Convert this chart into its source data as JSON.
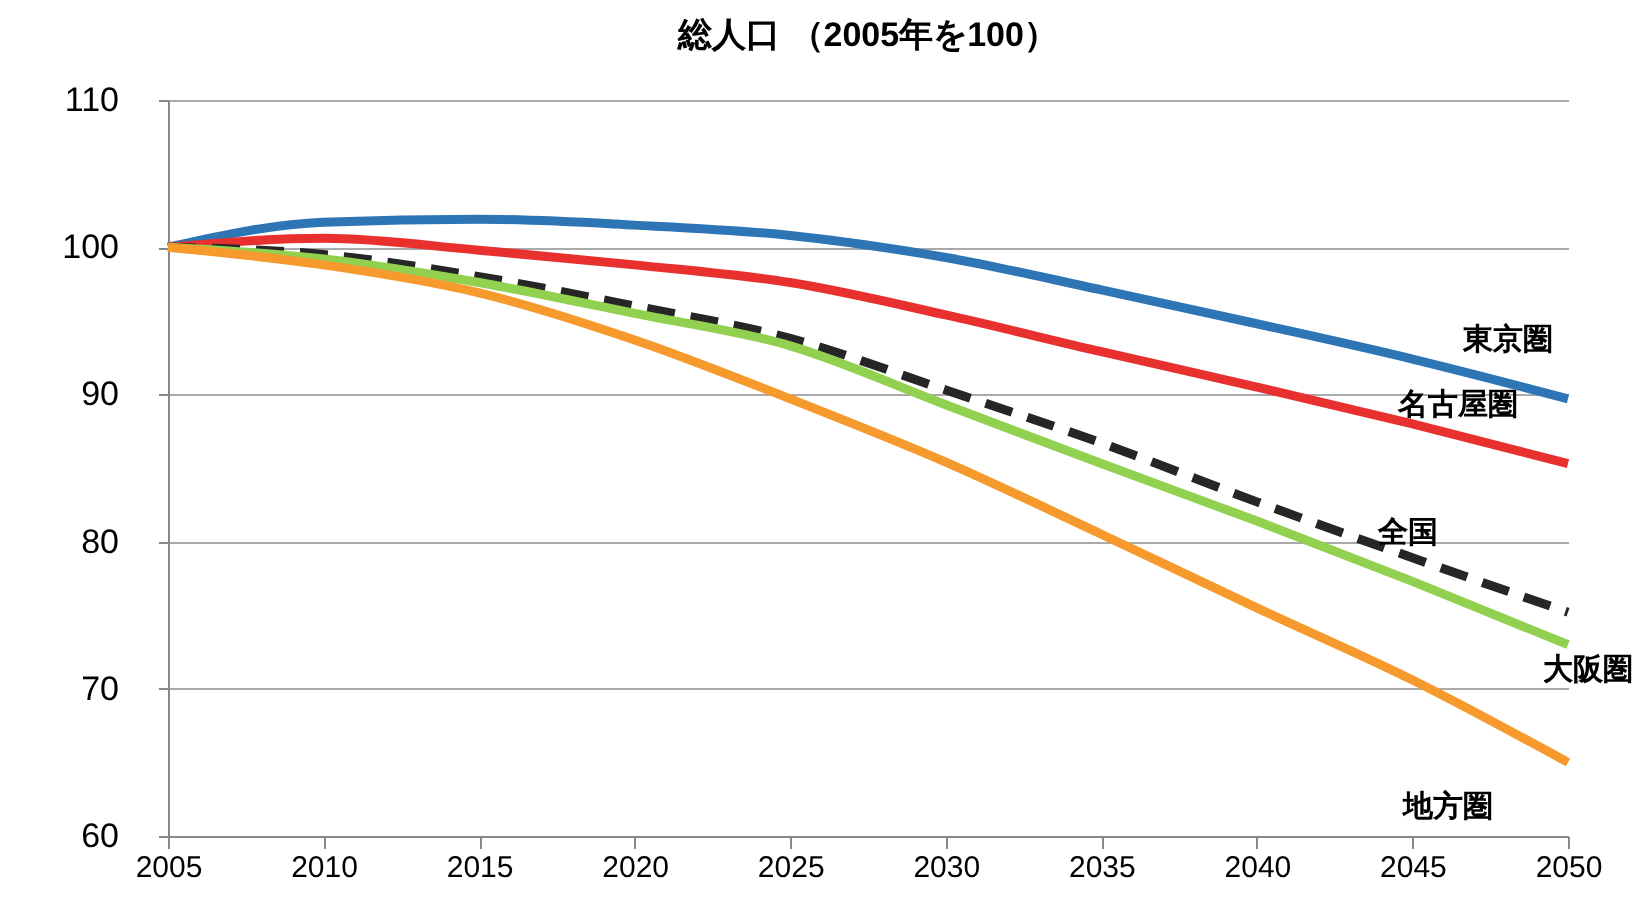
{
  "chart_data": {
    "type": "line",
    "title": "総人口 （2005年を100）",
    "x": [
      2005,
      2010,
      2015,
      2020,
      2025,
      2030,
      2035,
      2040,
      2045,
      2050
    ],
    "xlim": [
      2005,
      2050
    ],
    "xticks": [
      2005,
      2010,
      2015,
      2020,
      2025,
      2030,
      2035,
      2040,
      2045,
      2050
    ],
    "ylim": [
      60,
      110
    ],
    "yticks": [
      60,
      70,
      80,
      90,
      100,
      110
    ],
    "grid": "y",
    "marker": "none",
    "series": [
      {
        "name": "東京圏",
        "color": "#2e75b6",
        "line_style": "solid",
        "values": [
          100,
          101.7,
          101.9,
          101.5,
          100.8,
          99.3,
          97.1,
          94.8,
          92.4,
          89.7
        ]
      },
      {
        "name": "名古屋圏",
        "color": "#e8312f",
        "line_style": "solid",
        "values": [
          100,
          100.6,
          99.8,
          98.8,
          97.6,
          95.4,
          92.9,
          90.5,
          88.0,
          85.3
        ]
      },
      {
        "name": "全国",
        "color": "#262626",
        "line_style": "dashed",
        "values": [
          100,
          99.5,
          98.0,
          96.0,
          93.8,
          90.3,
          86.7,
          82.7,
          78.9,
          75.2
        ]
      },
      {
        "name": "大阪圏",
        "color": "#92d050",
        "line_style": "solid",
        "values": [
          100,
          99.2,
          97.6,
          95.5,
          93.3,
          89.3,
          85.3,
          81.4,
          77.3,
          73.0
        ]
      },
      {
        "name": "地方圏",
        "color": "#f79a2e",
        "line_style": "solid",
        "values": [
          100,
          98.8,
          96.9,
          93.7,
          89.7,
          85.4,
          80.5,
          75.5,
          70.6,
          65.0
        ]
      }
    ]
  }
}
